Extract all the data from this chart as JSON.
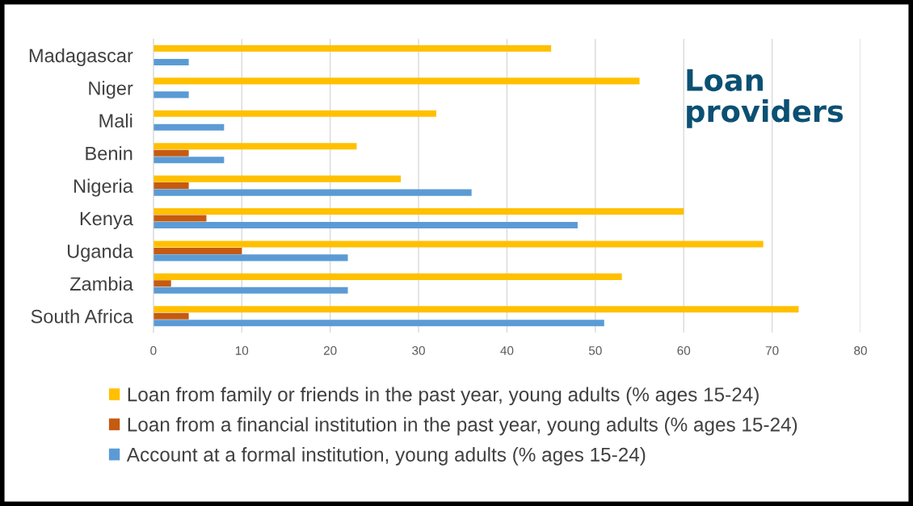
{
  "chart_data": {
    "type": "bar",
    "orientation": "horizontal",
    "title": "Loan providers",
    "categories": [
      "Madagascar",
      "Niger",
      "Mali",
      "Benin",
      "Nigeria",
      "Kenya",
      "Uganda",
      "Zambia",
      "South Africa"
    ],
    "series": [
      {
        "name": "Loan from family or friends in the past year, young adults (% ages 15-24)",
        "color": "#ffc000",
        "values": [
          45,
          55,
          32,
          23,
          28,
          60,
          69,
          53,
          73
        ]
      },
      {
        "name": "Loan from a financial institution in the past year, young adults (% ages 15-24)",
        "color": "#c55a11",
        "values": [
          null,
          null,
          null,
          4,
          4,
          6,
          10,
          2,
          4
        ]
      },
      {
        "name": "Account at a formal institution, young adults (% ages 15-24)",
        "color": "#5b9bd5",
        "values": [
          4,
          4,
          8,
          8,
          36,
          48,
          22,
          22,
          51
        ]
      }
    ],
    "xlim": [
      0,
      80
    ],
    "xticks": [
      0,
      10,
      20,
      30,
      40,
      50,
      60,
      70,
      80
    ],
    "grid": "x",
    "legend": "bottom"
  }
}
